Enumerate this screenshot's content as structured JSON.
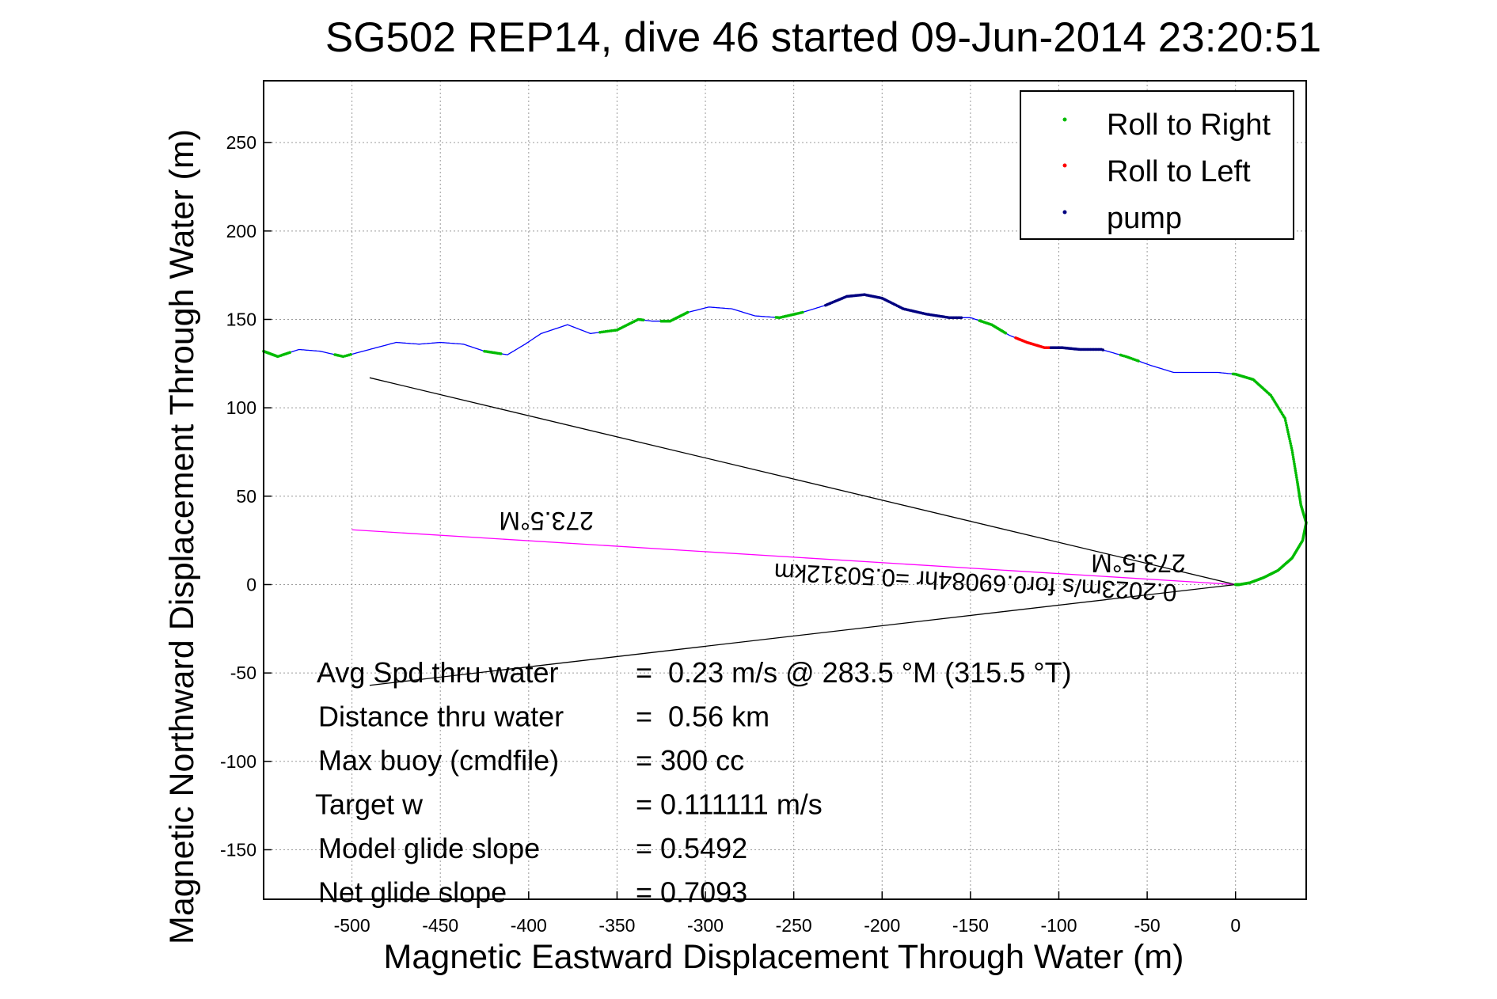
{
  "chart_data": {
    "type": "scatter",
    "title": "SG502 REP14, dive 46 started 09-Jun-2014 23:20:51",
    "xlabel": "Magnetic Eastward Displacement Through Water (m)",
    "ylabel": "Magnetic Northward Displacement Through Water (m)",
    "xlim": [
      -550,
      40
    ],
    "ylim": [
      -178,
      285
    ],
    "xticks": [
      -500,
      -450,
      -400,
      -350,
      -300,
      -250,
      -200,
      -150,
      -100,
      -50,
      0
    ],
    "yticks": [
      250,
      200,
      150,
      100,
      50,
      0,
      -50,
      -100,
      -150
    ],
    "grid": true,
    "legend_position": "top-right",
    "legend": [
      {
        "label": "Roll to Right",
        "color": "#00bb00"
      },
      {
        "label": "Roll to Left",
        "color": "#ff0000"
      },
      {
        "label": "pump",
        "color": "#000080"
      }
    ],
    "track": {
      "color": "#0000ff",
      "x": [
        -550,
        -542,
        -530,
        -518,
        -505,
        -490,
        -475,
        -462,
        -450,
        -437,
        -425,
        -412,
        -402,
        -393,
        -378,
        -365,
        -350,
        -338,
        -330,
        -320,
        -310,
        -298,
        -285,
        -272,
        -258,
        -245,
        -232,
        -220,
        -210,
        -200,
        -188,
        -175,
        -162,
        -150,
        -138,
        -128,
        -118,
        -108,
        -98,
        -88,
        -76,
        -62,
        -48,
        -35,
        -22,
        -10,
        0,
        10,
        20,
        28,
        32,
        35,
        37,
        40,
        38,
        32,
        24,
        16,
        8,
        2,
        0
      ],
      "y": [
        132,
        129,
        133,
        132,
        129,
        133,
        137,
        136,
        137,
        136,
        132,
        130,
        136,
        142,
        147,
        142,
        144,
        150,
        149,
        149,
        154,
        157,
        156,
        152,
        151,
        154,
        158,
        163,
        164,
        162,
        156,
        153,
        151,
        151,
        147,
        141,
        137,
        134,
        134,
        133,
        133,
        129,
        124,
        120,
        120,
        120,
        119,
        116,
        107,
        94,
        76,
        58,
        45,
        35,
        25,
        15,
        8,
        4,
        1,
        0,
        0
      ]
    },
    "roll_right_x_ranges": [
      [
        -550,
        -535
      ],
      [
        -510,
        -500
      ],
      [
        -425,
        -415
      ],
      [
        -360,
        -335
      ],
      [
        -325,
        -310
      ],
      [
        -260,
        -245
      ],
      [
        -145,
        -130
      ],
      [
        -118,
        -110
      ],
      [
        -65,
        -55
      ],
      [
        -2,
        40
      ]
    ],
    "roll_left_x_ranges": [
      [
        -125,
        -90
      ]
    ],
    "pump_x_ranges": [
      [
        -232,
        -155
      ],
      [
        -105,
        -75
      ]
    ],
    "lines": [
      {
        "color": "#000000",
        "x": [
          0,
          -490
        ],
        "y": [
          0,
          117
        ]
      },
      {
        "color": "#ff00ff",
        "x": [
          0,
          -500
        ],
        "y": [
          0,
          31
        ]
      },
      {
        "color": "#000000",
        "x": [
          0,
          -490
        ],
        "y": [
          0,
          -57
        ]
      }
    ],
    "rotated_labels": [
      {
        "text": "273.5°M",
        "x": -55,
        "y": 17
      },
      {
        "text": "273.5°M",
        "x": -390,
        "y": 41
      },
      {
        "text": "0.2023m/s for0.69084hr =0.50312km",
        "x": -147,
        "y": 6
      }
    ],
    "stats": [
      {
        "label": "Avg Spd thru water",
        "value": "=  0.23 m/s @ 283.5 °M (315.5 °T)"
      },
      {
        "label": "Distance thru water",
        "value": "=  0.56 km"
      },
      {
        "label": "Max buoy (cmdfile)",
        "value": "= 300 cc"
      },
      {
        "label": "Target w",
        "value": "= 0.111111 m/s"
      },
      {
        "label": "Model glide slope",
        "value": "= 0.5492"
      },
      {
        "label": "Net glide slope",
        "value": "= 0.7093"
      }
    ]
  }
}
